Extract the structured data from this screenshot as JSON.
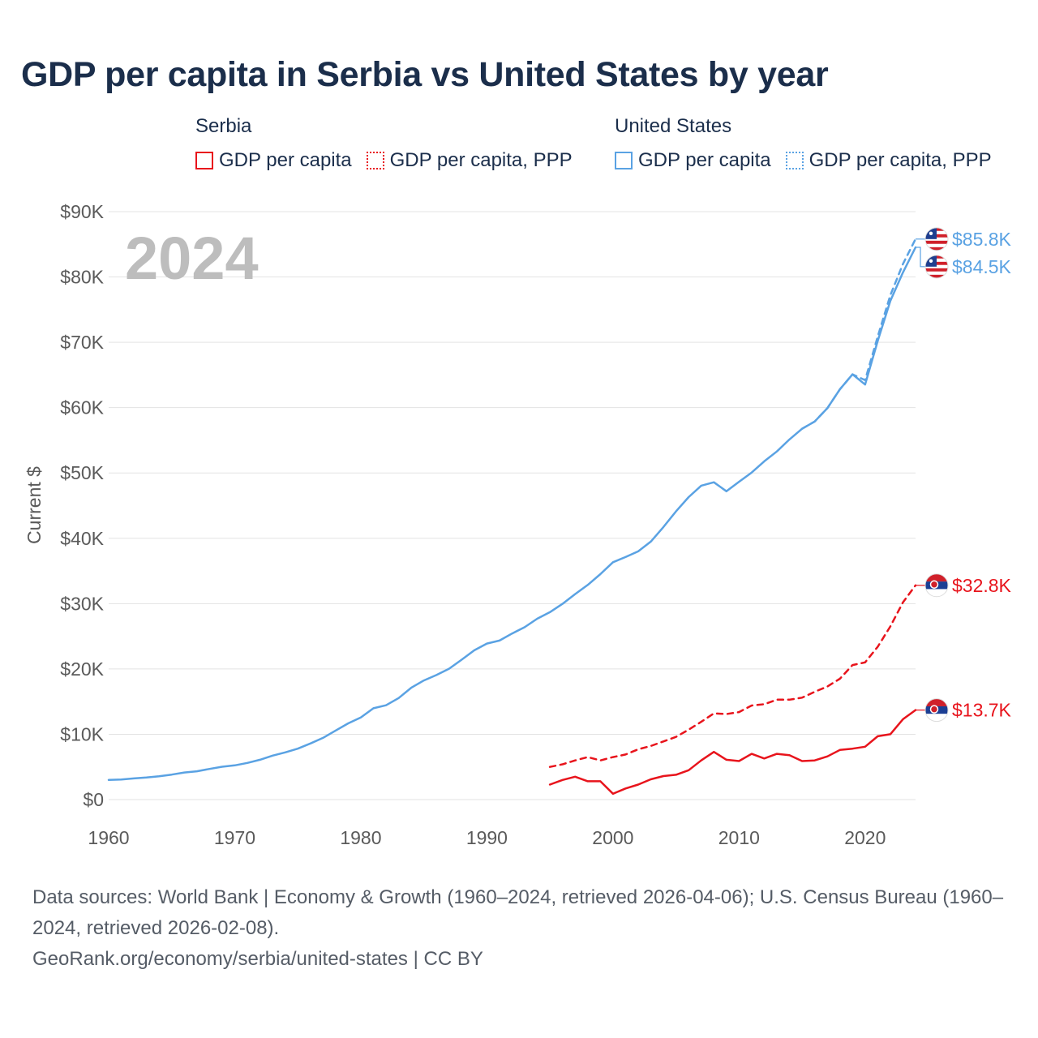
{
  "title": "GDP per capita in Serbia vs United States by year",
  "legend": {
    "serbia": {
      "name": "Serbia",
      "items": [
        "GDP per capita",
        "GDP per capita, PPP"
      ]
    },
    "us": {
      "name": "United States",
      "items": [
        "GDP per capita",
        "GDP per capita, PPP"
      ]
    }
  },
  "colors": {
    "serbia": "#e8141c",
    "us": "#5aa2e3",
    "grid": "#e3e3e3",
    "axis_text": "#5a5a5a",
    "year_watermark": "#bdbdbd",
    "title": "#1b2e4b"
  },
  "chart_data": {
    "type": "line",
    "title": "GDP per capita in Serbia vs United States by year",
    "ylabel": "Current $",
    "xlabel": "",
    "year_label": "2024",
    "xlim": [
      1960,
      2024
    ],
    "ylim": [
      0,
      90000
    ],
    "x_ticks": [
      1960,
      1970,
      1980,
      1990,
      2000,
      2010,
      2020
    ],
    "y_ticks": [
      {
        "value": 0,
        "label": "$0"
      },
      {
        "value": 10000,
        "label": "$10K"
      },
      {
        "value": 20000,
        "label": "$20K"
      },
      {
        "value": 30000,
        "label": "$30K"
      },
      {
        "value": 40000,
        "label": "$40K"
      },
      {
        "value": 50000,
        "label": "$50K"
      },
      {
        "value": 60000,
        "label": "$60K"
      },
      {
        "value": 70000,
        "label": "$70K"
      },
      {
        "value": 80000,
        "label": "$80K"
      },
      {
        "value": 90000,
        "label": "$90K"
      }
    ],
    "series": [
      {
        "name": "United States GDP per capita",
        "country": "us",
        "dashed": false,
        "end_label": "$84.5K",
        "x": [
          1960,
          1961,
          1962,
          1963,
          1964,
          1965,
          1966,
          1967,
          1968,
          1969,
          1970,
          1971,
          1972,
          1973,
          1974,
          1975,
          1976,
          1977,
          1978,
          1979,
          1980,
          1981,
          1982,
          1983,
          1984,
          1985,
          1986,
          1987,
          1988,
          1989,
          1990,
          1991,
          1992,
          1993,
          1994,
          1995,
          1996,
          1997,
          1998,
          1999,
          2000,
          2001,
          2002,
          2003,
          2004,
          2005,
          2006,
          2007,
          2008,
          2009,
          2010,
          2011,
          2012,
          2013,
          2014,
          2015,
          2016,
          2017,
          2018,
          2019,
          2020,
          2021,
          2022,
          2023,
          2024
        ],
        "values": [
          3007,
          3067,
          3244,
          3375,
          3574,
          3828,
          4146,
          4336,
          4696,
          5032,
          5234,
          5609,
          6094,
          6726,
          7226,
          7801,
          8592,
          9453,
          10565,
          11674,
          12575,
          13976,
          14434,
          15544,
          17121,
          18237,
          19071,
          20039,
          21417,
          22857,
          23889,
          24342,
          25419,
          26387,
          27695,
          28691,
          29968,
          31459,
          32854,
          34515,
          36330,
          37134,
          37998,
          39490,
          41725,
          44123,
          46302,
          48050,
          48570,
          47195,
          48651,
          50066,
          51784,
          53291,
          55124,
          56763,
          57867,
          59915,
          62805,
          65095,
          63528,
          70219,
          76330,
          80706,
          84534
        ]
      },
      {
        "name": "United States GDP per capita, PPP",
        "country": "us",
        "dashed": true,
        "end_label": "$85.8K",
        "x": [
          2015,
          2016,
          2017,
          2018,
          2019,
          2020,
          2021,
          2022,
          2023,
          2024
        ],
        "values": [
          56763,
          57867,
          59915,
          62805,
          65095,
          64200,
          70900,
          77200,
          82000,
          85800
        ]
      },
      {
        "name": "Serbia GDP per capita, PPP",
        "country": "serbia",
        "dashed": true,
        "end_label": "$32.8K",
        "x": [
          1995,
          1996,
          1997,
          1998,
          1999,
          2000,
          2001,
          2002,
          2003,
          2004,
          2005,
          2006,
          2007,
          2008,
          2009,
          2010,
          2011,
          2012,
          2013,
          2014,
          2015,
          2016,
          2017,
          2018,
          2019,
          2020,
          2021,
          2022,
          2023,
          2024
        ],
        "values": [
          5000,
          5400,
          6000,
          6500,
          6000,
          6500,
          6900,
          7700,
          8200,
          8900,
          9600,
          10700,
          11900,
          13200,
          13100,
          13400,
          14400,
          14600,
          15300,
          15300,
          15600,
          16500,
          17300,
          18500,
          20600,
          21000,
          23400,
          26500,
          30200,
          32800
        ]
      },
      {
        "name": "Serbia GDP per capita",
        "country": "serbia",
        "dashed": false,
        "end_label": "$13.7K",
        "x": [
          1995,
          1996,
          1997,
          1998,
          1999,
          2000,
          2001,
          2002,
          2003,
          2004,
          2005,
          2006,
          2007,
          2008,
          2009,
          2010,
          2011,
          2012,
          2013,
          2014,
          2015,
          2016,
          2017,
          2018,
          2019,
          2020,
          2021,
          2022,
          2023,
          2024
        ],
        "values": [
          2300,
          3000,
          3500,
          2800,
          2800,
          900,
          1700,
          2300,
          3100,
          3600,
          3800,
          4500,
          6000,
          7300,
          6100,
          5900,
          7000,
          6300,
          7000,
          6800,
          5900,
          6000,
          6600,
          7600,
          7800,
          8100,
          9700,
          10000,
          12300,
          13700
        ]
      }
    ]
  },
  "footer": {
    "line1": "Data sources: World Bank | Economy & Growth (1960–2024, retrieved 2026-04-06); U.S. Census Bureau (1960–2024, retrieved 2026-02-08).",
    "line2": "GeoRank.org/economy/serbia/united-states | CC BY"
  }
}
